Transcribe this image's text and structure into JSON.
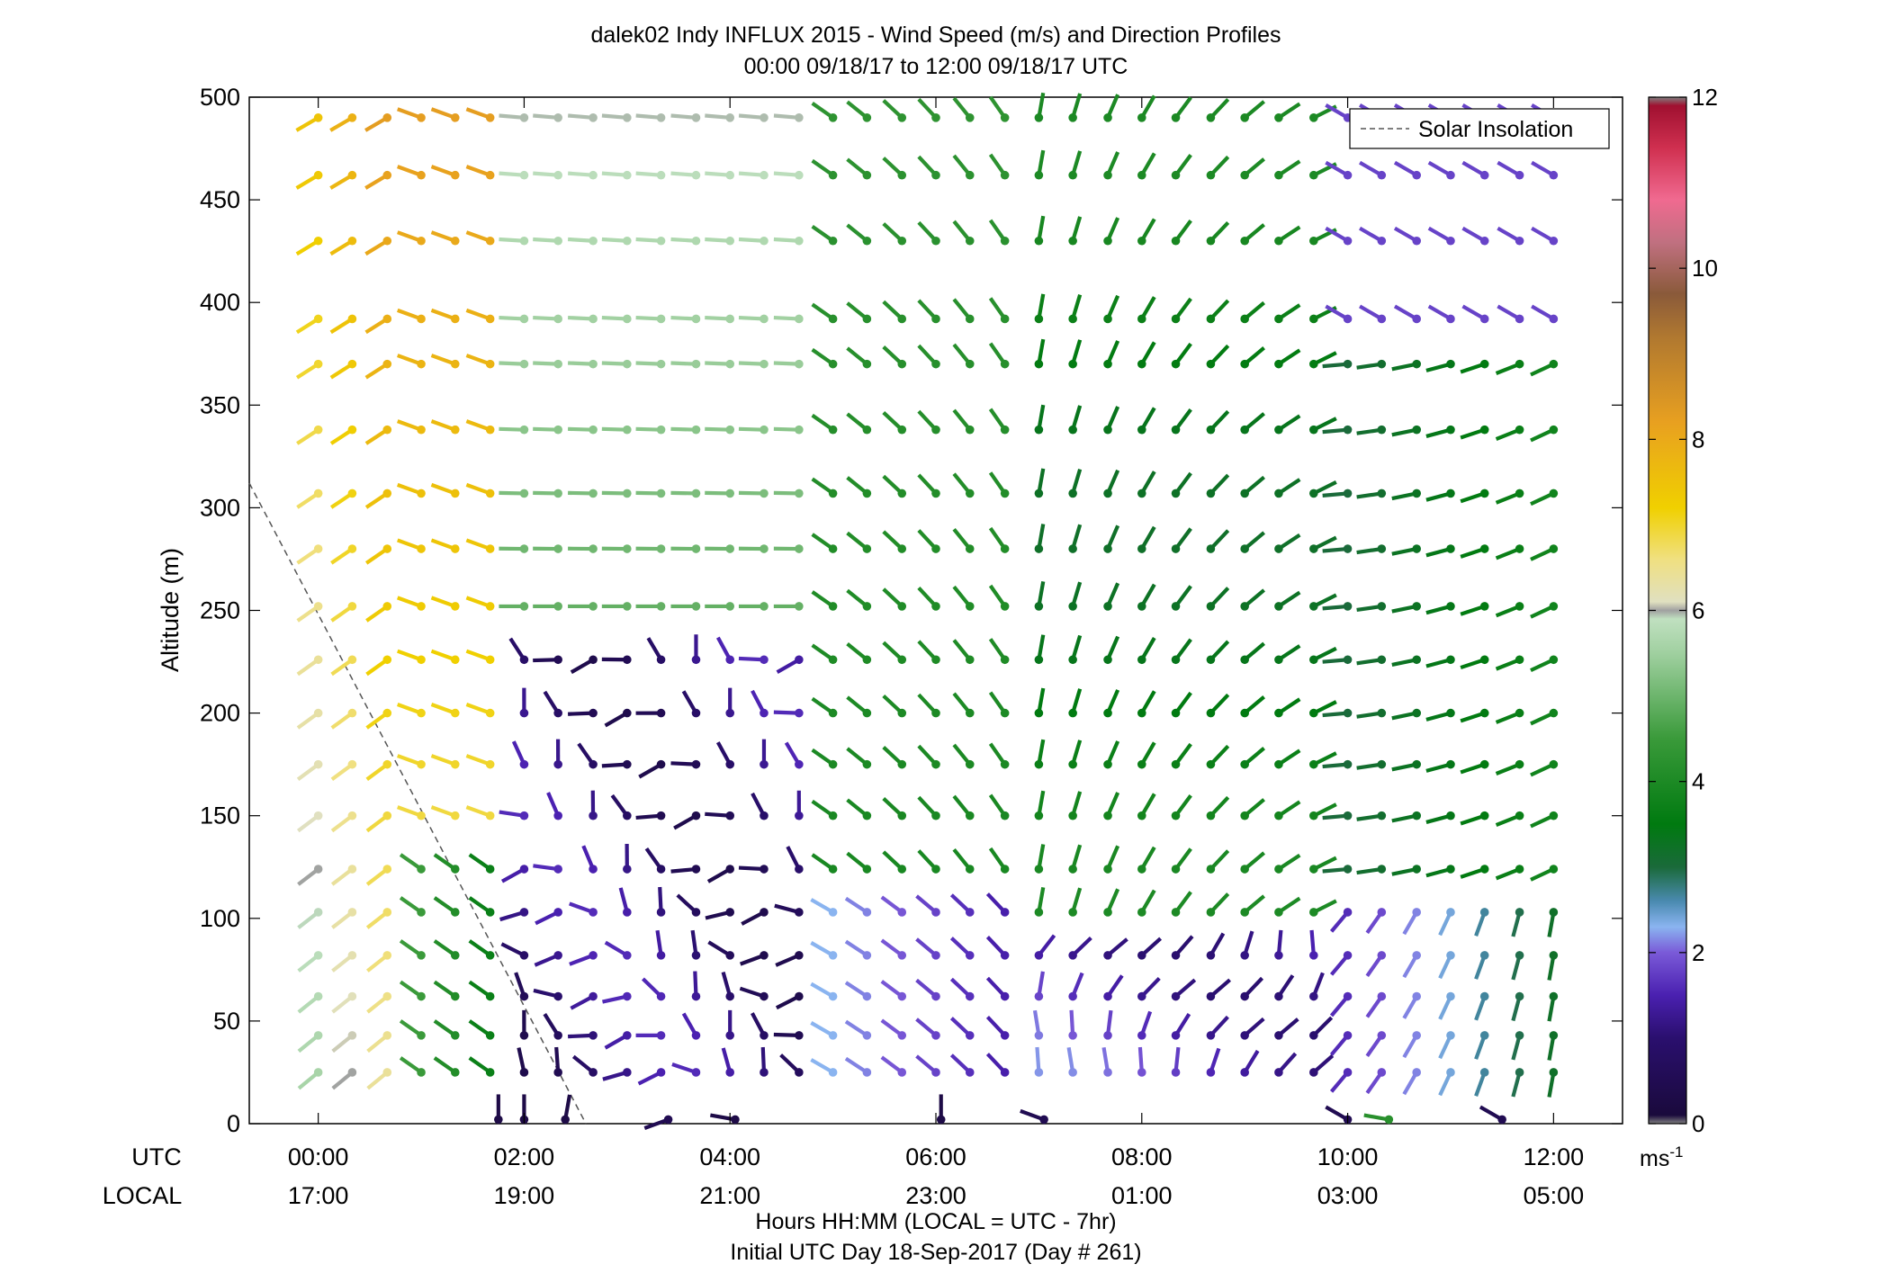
{
  "chart_data": {
    "type": "wind-barb-profile",
    "title_line1": "dalek02 Indy INFLUX 2015 - Wind Speed (m/s) and Direction Profiles",
    "title_line2": "00:00 09/18/17 to 12:00 09/18/17  UTC",
    "ylabel": "Altitude (m)",
    "xlabel": "Hours HH:MM  (LOCAL = UTC - 7hr)",
    "footer": "Initial UTC Day 18-Sep-2017 (Day # 261)",
    "xlim": [
      -0.67,
      12.67
    ],
    "ylim": [
      0,
      500
    ],
    "y_ticks": [
      0,
      50,
      100,
      150,
      200,
      250,
      300,
      350,
      400,
      450,
      500
    ],
    "x_ticks": [
      0,
      2,
      4,
      6,
      8,
      10,
      12
    ],
    "utc_label": "UTC",
    "local_label": "LOCAL",
    "utc_ticks": [
      "00:00",
      "02:00",
      "04:00",
      "06:00",
      "08:00",
      "10:00",
      "12:00"
    ],
    "local_ticks": [
      "17:00",
      "19:00",
      "21:00",
      "23:00",
      "01:00",
      "03:00",
      "05:00"
    ],
    "legend": {
      "label": "Solar Insolation",
      "placement": "top-right"
    },
    "solar_insolation": {
      "x": [
        -0.67,
        2.6
      ],
      "y": [
        312,
        0
      ]
    },
    "colorbar": {
      "min": 0,
      "max": 12,
      "ticks": [
        0,
        2,
        4,
        6,
        8,
        10,
        12
      ],
      "unit_label": "ms",
      "unit_sup": "-1",
      "stops": [
        {
          "v": 0.0,
          "c": "#808080"
        },
        {
          "v": 0.1,
          "c": "#1a0a3c"
        },
        {
          "v": 1.0,
          "c": "#2a0f6e"
        },
        {
          "v": 1.5,
          "c": "#4a20b0"
        },
        {
          "v": 2.0,
          "c": "#7a5ad8"
        },
        {
          "v": 2.3,
          "c": "#8ab4f0"
        },
        {
          "v": 2.6,
          "c": "#4a8ab0"
        },
        {
          "v": 3.0,
          "c": "#1a6a3a"
        },
        {
          "v": 3.5,
          "c": "#007a10"
        },
        {
          "v": 4.5,
          "c": "#3a9a3a"
        },
        {
          "v": 5.5,
          "c": "#a0d0a0"
        },
        {
          "v": 5.9,
          "c": "#c0e0c0"
        },
        {
          "v": 6.0,
          "c": "#a0a0a0"
        },
        {
          "v": 6.1,
          "c": "#e0e0c0"
        },
        {
          "v": 6.6,
          "c": "#f0e080"
        },
        {
          "v": 7.2,
          "c": "#f0d000"
        },
        {
          "v": 8.2,
          "c": "#e8a020"
        },
        {
          "v": 9.2,
          "c": "#b07830"
        },
        {
          "v": 9.7,
          "c": "#8a5a3a"
        },
        {
          "v": 10.3,
          "c": "#c07080"
        },
        {
          "v": 10.8,
          "c": "#f06a90"
        },
        {
          "v": 11.4,
          "c": "#d03050"
        },
        {
          "v": 11.9,
          "c": "#a01030"
        },
        {
          "v": 12.0,
          "c": "#808080"
        }
      ]
    },
    "altitudes": [
      25,
      43,
      62,
      82,
      103,
      124,
      150,
      175,
      200,
      226,
      252,
      280,
      307,
      338,
      370,
      392,
      430,
      462,
      490
    ],
    "times": [
      0.0,
      0.33,
      0.67,
      1.0,
      1.33,
      1.67,
      2.0,
      2.33,
      2.67,
      3.0,
      3.33,
      3.67,
      4.0,
      4.33,
      4.67,
      5.0,
      5.33,
      5.67,
      6.0,
      6.33,
      6.67,
      7.0,
      7.33,
      7.67,
      8.0,
      8.33,
      8.67,
      9.0,
      9.33,
      9.67,
      10.0,
      10.33,
      10.67,
      11.0,
      11.33,
      11.67,
      12.0
    ],
    "surface_obs": {
      "x": [
        1.75,
        2.0,
        2.4,
        3.4,
        4.05,
        6.05,
        7.05,
        10.0,
        10.4,
        11.5
      ],
      "speed": [
        0.3,
        0.3,
        0.3,
        0.5,
        0.3,
        0.3,
        0.5,
        0.5,
        4.2,
        0.5
      ],
      "dir": [
        0,
        0,
        10,
        250,
        280,
        0,
        290,
        300,
        280,
        300
      ]
    }
  }
}
